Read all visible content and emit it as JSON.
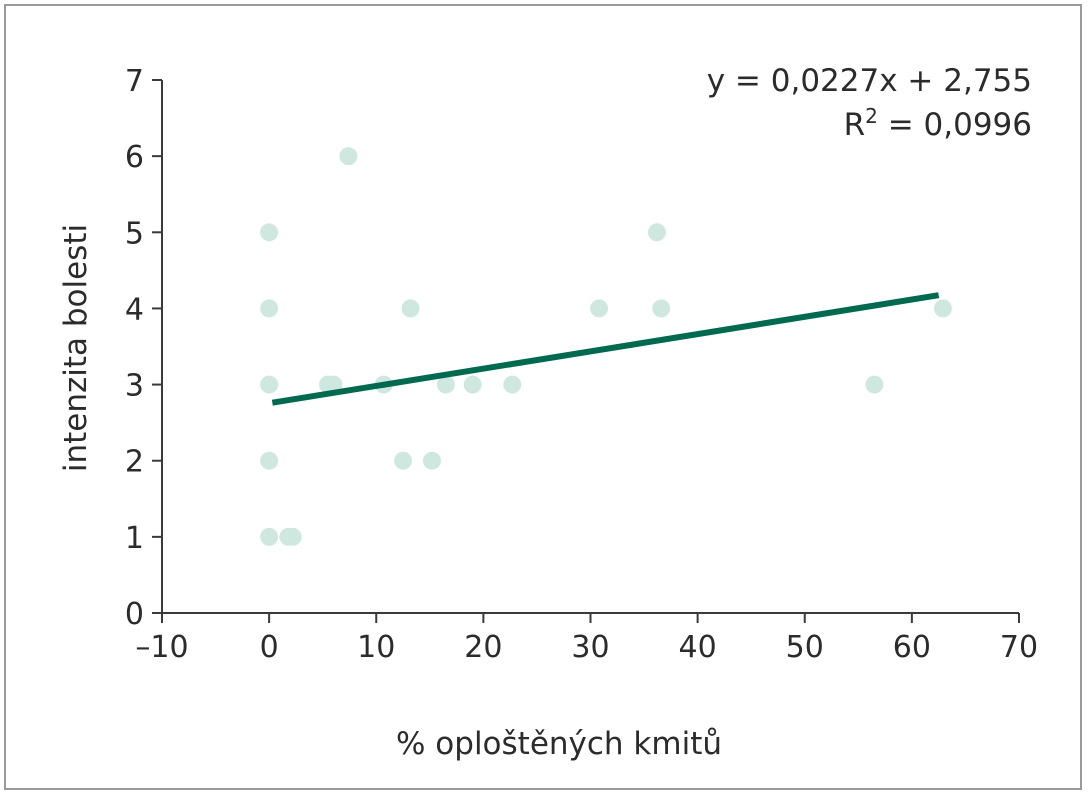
{
  "chart_data": {
    "type": "scatter",
    "xlabel": "% oploštěných kmitů",
    "ylabel": "intenzita bolesti",
    "xlim": [
      -10,
      70
    ],
    "ylim": [
      0,
      7
    ],
    "x_ticks": [
      -10,
      0,
      10,
      20,
      30,
      40,
      50,
      60,
      70
    ],
    "x_tick_labels": [
      "–10",
      "0",
      "10",
      "20",
      "30",
      "40",
      "50",
      "60",
      "70"
    ],
    "y_ticks": [
      0,
      1,
      2,
      3,
      4,
      5,
      6,
      7
    ],
    "y_tick_labels": [
      "0",
      "1",
      "2",
      "3",
      "4",
      "5",
      "6",
      "7"
    ],
    "grid": false,
    "series": [
      {
        "points": [
          {
            "x": 0,
            "y": 5
          },
          {
            "x": 0,
            "y": 4
          },
          {
            "x": 0,
            "y": 3
          },
          {
            "x": 0,
            "y": 2
          },
          {
            "x": 0,
            "y": 1
          },
          {
            "x": 1.8,
            "y": 1
          },
          {
            "x": 2.2,
            "y": 1
          },
          {
            "x": 5.5,
            "y": 3
          },
          {
            "x": 6.0,
            "y": 3
          },
          {
            "x": 7.4,
            "y": 6
          },
          {
            "x": 10.7,
            "y": 3
          },
          {
            "x": 12.5,
            "y": 2
          },
          {
            "x": 13.2,
            "y": 4
          },
          {
            "x": 15.2,
            "y": 2
          },
          {
            "x": 16.5,
            "y": 3
          },
          {
            "x": 19.0,
            "y": 3
          },
          {
            "x": 22.7,
            "y": 3
          },
          {
            "x": 30.8,
            "y": 4
          },
          {
            "x": 36.2,
            "y": 5
          },
          {
            "x": 36.6,
            "y": 4
          },
          {
            "x": 56.5,
            "y": 3
          },
          {
            "x": 62.9,
            "y": 4
          }
        ],
        "color": "#cfe8df"
      }
    ],
    "trendline": {
      "type": "linear",
      "slope": 0.0227,
      "intercept": 2.755,
      "x_range": [
        0.3,
        62.5
      ],
      "color": "#006a50"
    },
    "equation_text": "y = 0,0227x + 2,755",
    "r2_label": "R",
    "r2_sup": "2",
    "r2_value_text": " = 0,0996"
  }
}
